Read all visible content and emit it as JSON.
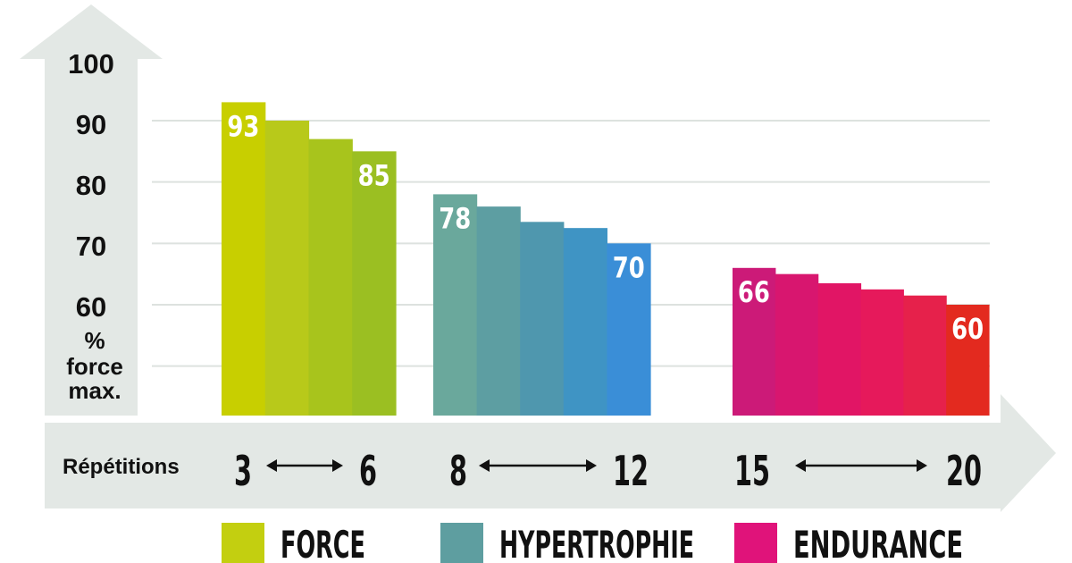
{
  "chart_data": {
    "type": "bar",
    "ylabel": "% force max.",
    "ylim": [
      50,
      100
    ],
    "yticks": [
      60,
      70,
      80,
      90,
      100
    ],
    "xlabel": "Répétitions",
    "grid": true,
    "groups": [
      {
        "name": "FORCE",
        "range_start": "3",
        "range_end": "6",
        "values": [
          93,
          90,
          87,
          85
        ],
        "labels": [
          "93",
          "",
          "",
          "85"
        ],
        "colors": [
          "#c8cf00",
          "#b8c91a",
          "#a8c41c",
          "#9bbf22"
        ]
      },
      {
        "name": "HYPERTROPHIE",
        "range_start": "8",
        "range_end": "12",
        "values": [
          78,
          76,
          73.5,
          72.5,
          70
        ],
        "labels": [
          "78",
          "",
          "",
          "",
          "70"
        ],
        "colors": [
          "#6aa89c",
          "#5d9ea2",
          "#4f97ae",
          "#3f94c4",
          "#3a8ed7"
        ]
      },
      {
        "name": "ENDURANCE",
        "range_start": "15",
        "range_end": "20",
        "values": [
          66,
          65,
          63.5,
          62.5,
          61.5,
          60
        ],
        "labels": [
          "66",
          "",
          "",
          "",
          "",
          "60"
        ],
        "colors": [
          "#cc1a78",
          "#d8166f",
          "#e11565",
          "#e6195b",
          "#e6214b",
          "#e32a1f"
        ]
      }
    ],
    "legend": [
      {
        "label": "FORCE",
        "color": "#c3cf10"
      },
      {
        "label": "HYPERTROPHIE",
        "color": "#5e9ea0"
      },
      {
        "label": "ENDURANCE",
        "color": "#e0137a"
      }
    ],
    "legend_position": "bottom"
  },
  "arrow_color": "#e3e8e5",
  "grid_color": "#dde2df"
}
